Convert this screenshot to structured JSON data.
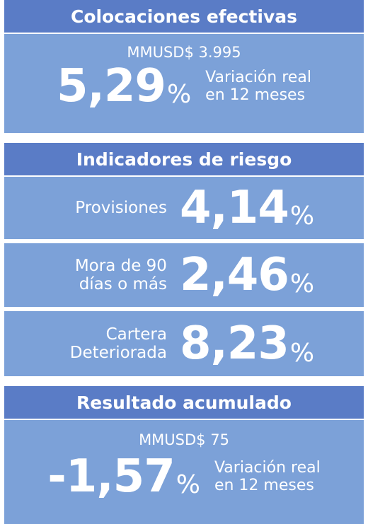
{
  "sections": [
    {
      "title": "Colocaciones efectivas",
      "amount": "MMUSD$ 3.995",
      "value": "5,29",
      "unit": "%",
      "note_line1": "Variación real",
      "note_line2": "en 12 meses"
    },
    {
      "title": "Indicadores de riesgo",
      "rows": [
        {
          "label_line1": "Provisiones",
          "value": "4,14",
          "unit": "%"
        },
        {
          "label_line1": "Mora de 90",
          "label_line2": "días o más",
          "value": "2,46",
          "unit": "%"
        },
        {
          "label_line1": "Cartera",
          "label_line2": "Deteriorada",
          "value": "8,23",
          "unit": "%"
        }
      ]
    },
    {
      "title": "Resultado acumulado",
      "amount": "MMUSD$ 75",
      "value": "-1,57",
      "unit": "%",
      "note_line1": "Variación real",
      "note_line2": "en 12 meses"
    }
  ]
}
